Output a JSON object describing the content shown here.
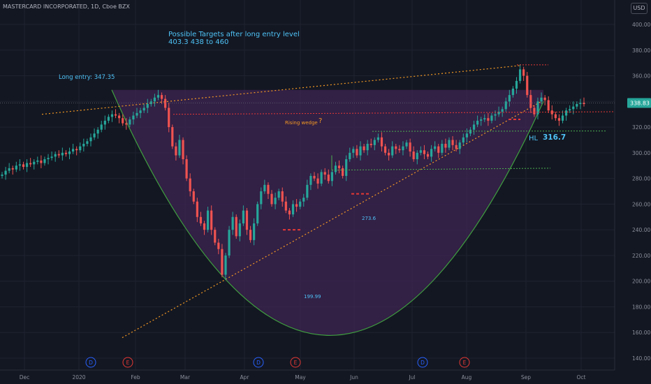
{
  "header": {
    "symbol_line": "MASTERCARD INCORPORATED, 1D, Cboe BZX",
    "currency": "USD"
  },
  "colors": {
    "background": "#131722",
    "grid": "#1f2330",
    "up": "#26a69a",
    "down": "#ef5350",
    "cup_fill": "#3d2452",
    "cup_line": "#3fa03f",
    "trend_orange": "#f59a23",
    "red_dotted": "#e53935",
    "green_dotted": "#4caf50",
    "text_blue": "#4fc3f7",
    "price_badge": "#26a69a"
  },
  "chart_data": {
    "type": "candlestick",
    "ylim": [
      130,
      410
    ],
    "ytick_labels": [
      "140.00",
      "160.00",
      "180.00",
      "200.00",
      "220.00",
      "240.00",
      "260.00",
      "280.00",
      "300.00",
      "320.00",
      "340.00",
      "360.00",
      "380.00",
      "400.00"
    ],
    "xtick_labels": [
      "Dec",
      "2020",
      "Feb",
      "Mar",
      "Apr",
      "May",
      "Jun",
      "Jul",
      "Aug",
      "Sep",
      "Oct"
    ],
    "current_price": "338.83",
    "annotations": {
      "targets_title": "Possible Targets after long entry level",
      "targets_values": "403.3     438 to 460",
      "long_entry": "Long entry: 347.35",
      "rising_wedge": "Rising wedge",
      "question": "?",
      "hl_label": "HL",
      "hl_value": "316.7",
      "level_273": "273.6",
      "level_199": "199.99"
    },
    "event_markers": [
      "D",
      "E",
      "D",
      "E",
      "D",
      "E"
    ],
    "series_close": [
      283,
      286,
      288,
      287,
      290,
      291,
      289,
      292,
      291,
      293,
      294,
      292,
      295,
      296,
      297,
      299,
      298,
      300,
      299,
      301,
      303,
      302,
      305,
      307,
      309,
      312,
      315,
      318,
      322,
      325,
      328,
      330,
      329,
      327,
      323,
      322,
      326,
      329,
      331,
      333,
      335,
      338,
      340,
      343,
      345,
      342,
      335,
      320,
      305,
      298,
      310,
      295,
      280,
      270,
      262,
      250,
      245,
      240,
      255,
      240,
      230,
      225,
      205,
      220,
      240,
      250,
      235,
      245,
      255,
      240,
      232,
      245,
      260,
      270,
      275,
      268,
      260,
      265,
      270,
      262,
      255,
      252,
      260,
      258,
      262,
      265,
      275,
      282,
      280,
      276,
      285,
      283,
      278,
      285,
      290,
      288,
      282,
      295,
      300,
      303,
      298,
      305,
      302,
      307,
      306,
      310,
      312,
      305,
      300,
      298,
      305,
      303,
      302,
      305,
      308,
      301,
      295,
      300,
      302,
      299,
      297,
      303,
      305,
      300,
      307,
      304,
      310,
      306,
      303,
      308,
      312,
      315,
      318,
      322,
      325,
      326,
      327,
      325,
      329,
      330,
      332,
      334,
      340,
      345,
      350,
      356,
      365,
      360,
      345,
      335,
      330,
      340,
      343,
      341,
      333,
      330,
      327,
      325,
      329,
      333,
      334,
      336,
      338,
      339,
      338
    ]
  }
}
